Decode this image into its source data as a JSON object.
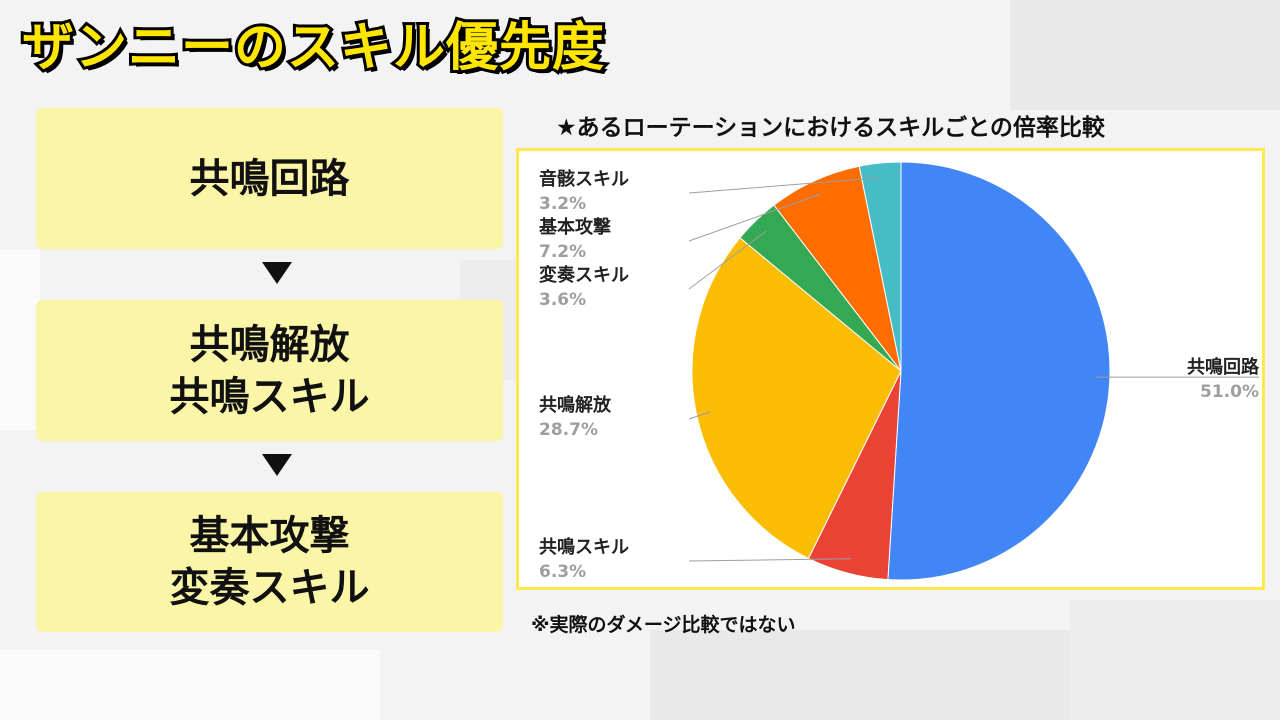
{
  "title": "ザンニーのスキル優先度",
  "flow": {
    "steps": [
      {
        "lines": [
          "共鳴回路"
        ]
      },
      {
        "lines": [
          "共鳴解放",
          "共鳴スキル"
        ]
      },
      {
        "lines": [
          "基本攻撃",
          "変奏スキル"
        ]
      }
    ]
  },
  "chart_title": "★あるローテーションにおけるスキルごとの倍率比較",
  "footnote": "※実際のダメージ比較ではない",
  "chart_data": {
    "type": "pie",
    "title": "",
    "slices": [
      {
        "label": "共鳴回路",
        "value": 51.0,
        "value_label": "51.0%",
        "color": "#4285f4",
        "label_side": "right"
      },
      {
        "label": "共鳴スキル",
        "value": 6.3,
        "value_label": "6.3%",
        "color": "#ea4335",
        "label_side": "left"
      },
      {
        "label": "共鳴解放",
        "value": 28.7,
        "value_label": "28.7%",
        "color": "#fbbc04",
        "label_side": "left"
      },
      {
        "label": "変奏スキル",
        "value": 3.6,
        "value_label": "3.6%",
        "color": "#34a853",
        "label_side": "left"
      },
      {
        "label": "基本攻撃",
        "value": 7.2,
        "value_label": "7.2%",
        "color": "#ff6d01",
        "label_side": "left"
      },
      {
        "label": "音骸スキル",
        "value": 3.2,
        "value_label": "3.2%",
        "color": "#46bdc6",
        "label_side": "left"
      }
    ]
  }
}
